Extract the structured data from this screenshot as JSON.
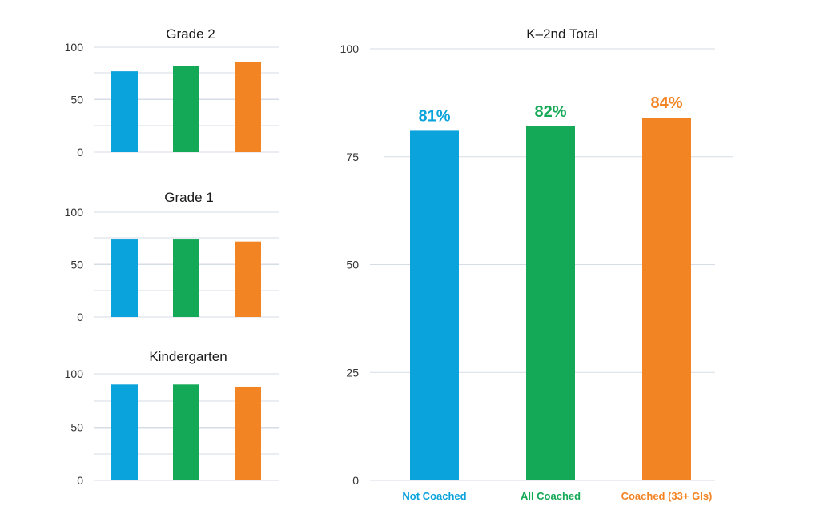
{
  "colors": {
    "not_coached": "#0ba3dc",
    "all_coached": "#14a957",
    "coached_33": "#f28424"
  },
  "chart_data": [
    {
      "type": "bar",
      "title": "Grade 2",
      "categories": [
        "",
        "",
        ""
      ],
      "values": [
        77,
        82,
        86
      ],
      "ylim": [
        0,
        100
      ],
      "yticks": [
        0,
        50,
        100
      ],
      "grid": true
    },
    {
      "type": "bar",
      "title": "Grade 1",
      "categories": [
        "",
        "",
        ""
      ],
      "values": [
        74,
        74,
        72
      ],
      "ylim": [
        0,
        100
      ],
      "yticks": [
        0,
        50,
        100
      ],
      "grid": true
    },
    {
      "type": "bar",
      "title": "Kindergarten",
      "categories": [
        "",
        "",
        ""
      ],
      "values": [
        90,
        90,
        88
      ],
      "ylim": [
        0,
        100
      ],
      "yticks": [
        0,
        50,
        100
      ],
      "grid": true
    },
    {
      "type": "bar",
      "title": "K–2nd Total",
      "categories": [
        "Not Coached",
        "All Coached",
        "Coached (33+ GIs)"
      ],
      "values": [
        81,
        82,
        84
      ],
      "data_labels": [
        "81%",
        "82%",
        "84%"
      ],
      "ylim": [
        0,
        100
      ],
      "yticks": [
        0,
        25,
        50,
        75,
        100
      ],
      "grid": true
    }
  ]
}
